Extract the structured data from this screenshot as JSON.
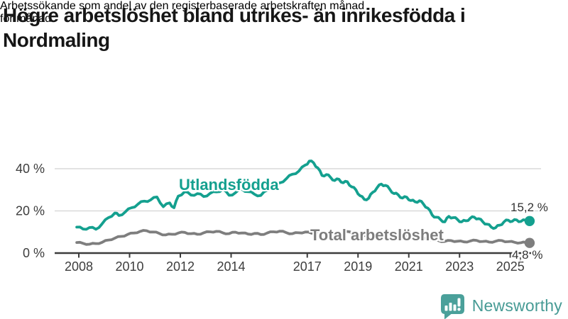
{
  "header": {
    "title": "Högre arbetslöshet bland utrikes- än inrikesfödda i Nordmaling",
    "title_lines": [
      "Högre arbetslöshet bland utrikes- än inrikesfödda i",
      "Nordmaling"
    ],
    "subtitle": "Arbetssökande som andel av den registerbaserade arbetskraften månad för månad.",
    "subtitle_lines": [
      "Arbetssökande som andel av den registerbaserade arbetskraften månad",
      "för månad."
    ]
  },
  "colors": {
    "accent_teal": "#14a08f",
    "series_gray": "#7e7e7e",
    "axis": "#3c3c3c",
    "grid": "#d9d9d9",
    "title_text": "#161616",
    "logo_teal": "#479b95"
  },
  "chart_data": {
    "type": "line",
    "title": "",
    "xlabel": "",
    "ylabel": "",
    "unit": "%",
    "xlim": [
      2007.9,
      2025.8
    ],
    "ylim": [
      0,
      46
    ],
    "grid": "horizontal",
    "y_ticks": [
      {
        "value": 0,
        "label": "0 %"
      },
      {
        "value": 20,
        "label": "20 %"
      },
      {
        "value": 40,
        "label": "40 %"
      }
    ],
    "x_ticks": [
      {
        "value": 2008,
        "label": "2008"
      },
      {
        "value": 2010,
        "label": "2010"
      },
      {
        "value": 2012,
        "label": "2012"
      },
      {
        "value": 2014,
        "label": "2014"
      },
      {
        "value": 2017,
        "label": "2017"
      },
      {
        "value": 2019,
        "label": "2019"
      },
      {
        "value": 2021,
        "label": "2021"
      },
      {
        "value": 2023,
        "label": "2023"
      },
      {
        "value": 2025,
        "label": "2025"
      }
    ],
    "series": [
      {
        "name": "Utlandsfödda",
        "color": "#14a08f",
        "end_label": "15,2 %",
        "end_value": 15.2,
        "points": [
          [
            2007.92,
            12.3
          ],
          [
            2008.17,
            11.4
          ],
          [
            2008.42,
            12.1
          ],
          [
            2008.67,
            11.3
          ],
          [
            2008.92,
            13.9
          ],
          [
            2009.17,
            16.8
          ],
          [
            2009.42,
            19.0
          ],
          [
            2009.58,
            17.8
          ],
          [
            2009.83,
            19.5
          ],
          [
            2010.08,
            21.5
          ],
          [
            2010.33,
            23.2
          ],
          [
            2010.58,
            24.6
          ],
          [
            2010.83,
            25.2
          ],
          [
            2011.08,
            26.6
          ],
          [
            2011.33,
            22.0
          ],
          [
            2011.58,
            23.8
          ],
          [
            2011.75,
            21.5
          ],
          [
            2011.92,
            27.0
          ],
          [
            2012.17,
            29.1
          ],
          [
            2012.42,
            27.5
          ],
          [
            2012.67,
            28.2
          ],
          [
            2012.92,
            26.8
          ],
          [
            2013.17,
            28.3
          ],
          [
            2013.42,
            29.0
          ],
          [
            2013.67,
            30.2
          ],
          [
            2013.92,
            27.4
          ],
          [
            2014.17,
            28.6
          ],
          [
            2014.42,
            30.3
          ],
          [
            2014.67,
            29.1
          ],
          [
            2014.92,
            27.9
          ],
          [
            2015.17,
            27.3
          ],
          [
            2015.42,
            29.8
          ],
          [
            2015.67,
            31.6
          ],
          [
            2015.92,
            33.3
          ],
          [
            2016.17,
            35.2
          ],
          [
            2016.42,
            37.4
          ],
          [
            2016.67,
            38.9
          ],
          [
            2016.92,
            41.7
          ],
          [
            2017.08,
            43.6
          ],
          [
            2017.25,
            42.8
          ],
          [
            2017.42,
            40.3
          ],
          [
            2017.58,
            36.8
          ],
          [
            2017.75,
            37.2
          ],
          [
            2017.92,
            35.9
          ],
          [
            2018.08,
            34.4
          ],
          [
            2018.25,
            35.0
          ],
          [
            2018.42,
            33.3
          ],
          [
            2018.58,
            33.8
          ],
          [
            2018.75,
            31.4
          ],
          [
            2018.92,
            29.9
          ],
          [
            2019.08,
            27.2
          ],
          [
            2019.25,
            25.4
          ],
          [
            2019.42,
            26.0
          ],
          [
            2019.58,
            28.8
          ],
          [
            2019.75,
            31.0
          ],
          [
            2019.92,
            32.7
          ],
          [
            2020.08,
            32.1
          ],
          [
            2020.25,
            30.3
          ],
          [
            2020.42,
            28.2
          ],
          [
            2020.58,
            27.7
          ],
          [
            2020.75,
            26.1
          ],
          [
            2020.92,
            26.5
          ],
          [
            2021.08,
            24.9
          ],
          [
            2021.25,
            24.3
          ],
          [
            2021.42,
            24.8
          ],
          [
            2021.58,
            23.2
          ],
          [
            2021.75,
            21.3
          ],
          [
            2021.92,
            18.1
          ],
          [
            2022.08,
            17.0
          ],
          [
            2022.25,
            15.9
          ],
          [
            2022.42,
            14.8
          ],
          [
            2022.58,
            17.4
          ],
          [
            2022.75,
            16.8
          ],
          [
            2022.92,
            15.9
          ],
          [
            2023.08,
            14.8
          ],
          [
            2023.25,
            15.3
          ],
          [
            2023.42,
            16.5
          ],
          [
            2023.58,
            17.0
          ],
          [
            2023.75,
            16.3
          ],
          [
            2023.92,
            14.8
          ],
          [
            2024.08,
            13.7
          ],
          [
            2024.25,
            12.3
          ],
          [
            2024.42,
            12.0
          ],
          [
            2024.58,
            13.2
          ],
          [
            2024.75,
            14.8
          ],
          [
            2024.92,
            15.6
          ],
          [
            2025.08,
            15.1
          ],
          [
            2025.25,
            15.7
          ],
          [
            2025.42,
            15.0
          ],
          [
            2025.6,
            15.6
          ],
          [
            2025.76,
            15.2
          ]
        ]
      },
      {
        "name": "Total arbetslöshet",
        "color": "#7e7e7e",
        "end_label": "4,8 %",
        "end_value": 4.8,
        "points": [
          [
            2007.92,
            5.0
          ],
          [
            2008.17,
            4.6
          ],
          [
            2008.42,
            4.2
          ],
          [
            2008.67,
            4.5
          ],
          [
            2008.92,
            5.1
          ],
          [
            2009.17,
            6.2
          ],
          [
            2009.42,
            7.1
          ],
          [
            2009.67,
            7.9
          ],
          [
            2009.92,
            8.8
          ],
          [
            2010.17,
            9.5
          ],
          [
            2010.42,
            10.3
          ],
          [
            2010.67,
            10.6
          ],
          [
            2010.92,
            10.0
          ],
          [
            2011.17,
            9.3
          ],
          [
            2011.42,
            8.6
          ],
          [
            2011.67,
            8.9
          ],
          [
            2011.92,
            9.5
          ],
          [
            2012.17,
            9.8
          ],
          [
            2012.42,
            9.2
          ],
          [
            2012.67,
            8.9
          ],
          [
            2012.92,
            9.6
          ],
          [
            2013.17,
            10.1
          ],
          [
            2013.42,
            10.3
          ],
          [
            2013.67,
            9.6
          ],
          [
            2013.92,
            9.2
          ],
          [
            2014.17,
            9.9
          ],
          [
            2014.42,
            9.5
          ],
          [
            2014.67,
            9.0
          ],
          [
            2014.92,
            9.3
          ],
          [
            2015.17,
            8.8
          ],
          [
            2015.42,
            9.5
          ],
          [
            2015.67,
            10.1
          ],
          [
            2015.92,
            10.4
          ],
          [
            2016.17,
            9.7
          ],
          [
            2016.42,
            9.2
          ],
          [
            2016.67,
            9.6
          ],
          [
            2016.92,
            10.0
          ],
          [
            2017.17,
            9.4
          ],
          [
            2017.42,
            10.1
          ],
          [
            2017.67,
            9.2
          ],
          [
            2017.92,
            8.6
          ],
          [
            2018.17,
            9.2
          ],
          [
            2018.42,
            9.8
          ],
          [
            2018.67,
            10.1
          ],
          [
            2018.92,
            9.3
          ],
          [
            2019.17,
            8.7
          ],
          [
            2019.42,
            8.4
          ],
          [
            2019.67,
            8.8
          ],
          [
            2019.92,
            8.5
          ],
          [
            2020.17,
            9.0
          ],
          [
            2020.42,
            9.7
          ],
          [
            2020.67,
            9.1
          ],
          [
            2020.92,
            8.5
          ],
          [
            2021.17,
            8.1
          ],
          [
            2021.42,
            7.5
          ],
          [
            2021.67,
            6.9
          ],
          [
            2021.92,
            6.3
          ],
          [
            2022.17,
            5.9
          ],
          [
            2022.42,
            5.5
          ],
          [
            2022.67,
            5.9
          ],
          [
            2022.92,
            5.6
          ],
          [
            2023.17,
            5.3
          ],
          [
            2023.42,
            5.7
          ],
          [
            2023.67,
            6.0
          ],
          [
            2023.92,
            5.5
          ],
          [
            2024.17,
            5.2
          ],
          [
            2024.42,
            5.6
          ],
          [
            2024.67,
            5.9
          ],
          [
            2024.92,
            5.4
          ],
          [
            2025.17,
            5.1
          ],
          [
            2025.42,
            4.9
          ],
          [
            2025.6,
            5.0
          ],
          [
            2025.76,
            4.8
          ]
        ]
      }
    ]
  },
  "footer": {
    "brand": "Newsworthy"
  }
}
